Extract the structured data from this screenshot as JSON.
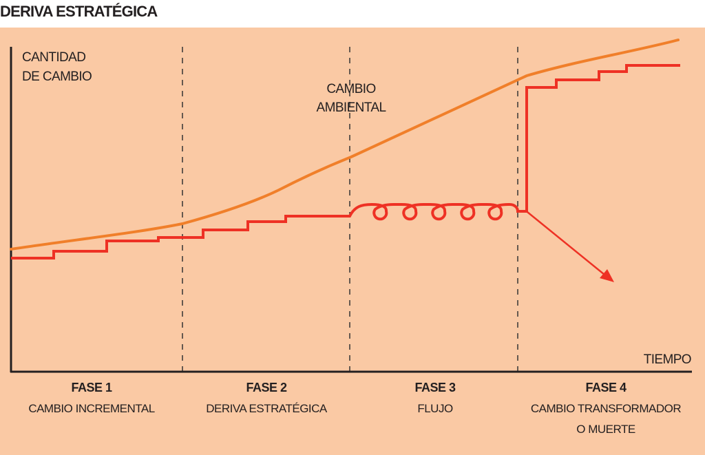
{
  "title": "DERIVA ESTRATÉGICA",
  "colors": {
    "background": "#FAC9A4",
    "environment_line": "#F07F2A",
    "strategy_line": "#EE3124",
    "ink": "#231f20"
  },
  "axes": {
    "y_label_line1": "CANTIDAD",
    "y_label_line2": "DE CAMBIO",
    "x_label": "TIEMPO"
  },
  "annotation": {
    "line1": "CAMBIO",
    "line2": "AMBIENTAL"
  },
  "phases": [
    {
      "name": "FASE 1",
      "desc": [
        "CAMBIO INCREMENTAL"
      ]
    },
    {
      "name": "FASE 2",
      "desc": [
        "DERIVA ESTRATÉGICA"
      ]
    },
    {
      "name": "FASE 3",
      "desc": [
        "FLUJO"
      ]
    },
    {
      "name": "FASE 4",
      "desc": [
        "CAMBIO TRANSFORMADOR",
        "O MUERTE"
      ]
    }
  ]
}
